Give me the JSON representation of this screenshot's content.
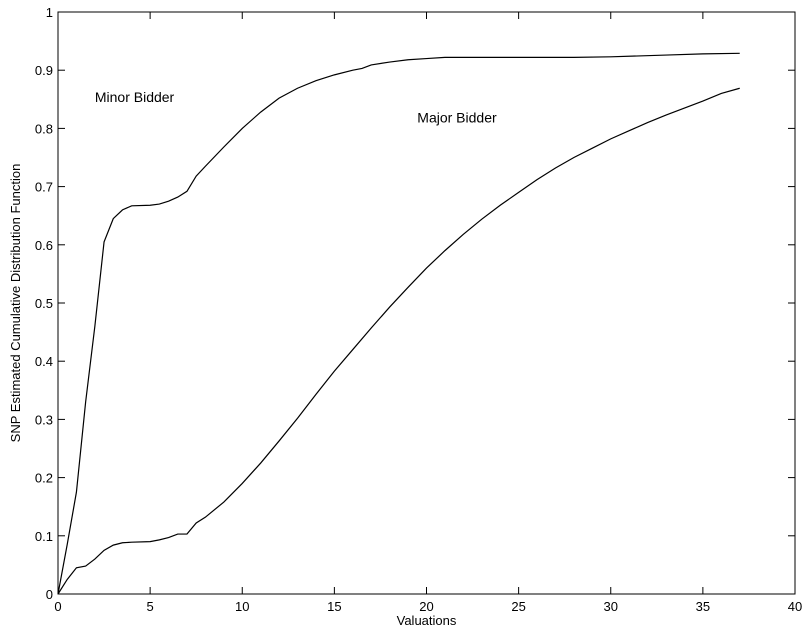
{
  "chart_data": {
    "type": "line",
    "title": "",
    "xlabel": "Valuations",
    "ylabel": "SNP Estimated Cumulative Distribution Function",
    "xlim": [
      0,
      40
    ],
    "ylim": [
      0,
      1
    ],
    "xticks": [
      0,
      5,
      10,
      15,
      20,
      25,
      30,
      35,
      40
    ],
    "yticks": [
      0,
      0.1,
      0.2,
      0.3,
      0.4,
      0.5,
      0.6,
      0.7,
      0.8,
      0.9,
      1
    ],
    "grid": false,
    "legend": "none",
    "line_color": "#000000",
    "series": [
      {
        "name": "Minor Bidder",
        "x": [
          0,
          0.5,
          1.0,
          1.5,
          2.0,
          2.5,
          3.0,
          3.5,
          4.0,
          5.0,
          5.5,
          6.0,
          6.5,
          7.0,
          7.5,
          8.0,
          9.0,
          10.0,
          11.0,
          12.0,
          13.0,
          14.0,
          15.0,
          16.0,
          16.5,
          17.0,
          18.0,
          19.0,
          20.0,
          21.0,
          25.0,
          28.0,
          30.0,
          33.0,
          35.0,
          37.0
        ],
        "y": [
          0,
          0.085,
          0.175,
          0.33,
          0.46,
          0.605,
          0.645,
          0.66,
          0.667,
          0.668,
          0.67,
          0.675,
          0.682,
          0.692,
          0.718,
          0.735,
          0.768,
          0.8,
          0.828,
          0.852,
          0.869,
          0.882,
          0.892,
          0.9,
          0.903,
          0.909,
          0.914,
          0.918,
          0.92,
          0.922,
          0.922,
          0.922,
          0.923,
          0.926,
          0.928,
          0.929
        ]
      },
      {
        "name": "Major Bidder",
        "x": [
          0,
          0.5,
          1.0,
          1.5,
          2.0,
          2.5,
          3.0,
          3.5,
          4.0,
          5.0,
          5.5,
          6.0,
          6.5,
          7.0,
          7.5,
          8.0,
          9.0,
          10.0,
          11.0,
          12.0,
          13.0,
          14.0,
          15.0,
          16.0,
          17.0,
          18.0,
          19.0,
          20.0,
          21.0,
          22.0,
          23.0,
          24.0,
          25.0,
          26.0,
          27.0,
          28.0,
          29.0,
          30.0,
          31.0,
          32.0,
          33.0,
          34.0,
          35.0,
          36.0,
          37.0
        ],
        "y": [
          0,
          0.025,
          0.045,
          0.048,
          0.06,
          0.075,
          0.084,
          0.088,
          0.089,
          0.09,
          0.093,
          0.097,
          0.103,
          0.103,
          0.122,
          0.132,
          0.158,
          0.19,
          0.225,
          0.263,
          0.302,
          0.343,
          0.383,
          0.42,
          0.457,
          0.493,
          0.527,
          0.56,
          0.59,
          0.618,
          0.644,
          0.668,
          0.69,
          0.712,
          0.732,
          0.75,
          0.766,
          0.782,
          0.796,
          0.81,
          0.823,
          0.835,
          0.847,
          0.86,
          0.869
        ]
      }
    ],
    "annotations": [
      {
        "text": "Minor Bidder",
        "x": 2,
        "y": 0.845
      },
      {
        "text": "Major Bidder",
        "x": 19.5,
        "y": 0.81
      }
    ]
  }
}
